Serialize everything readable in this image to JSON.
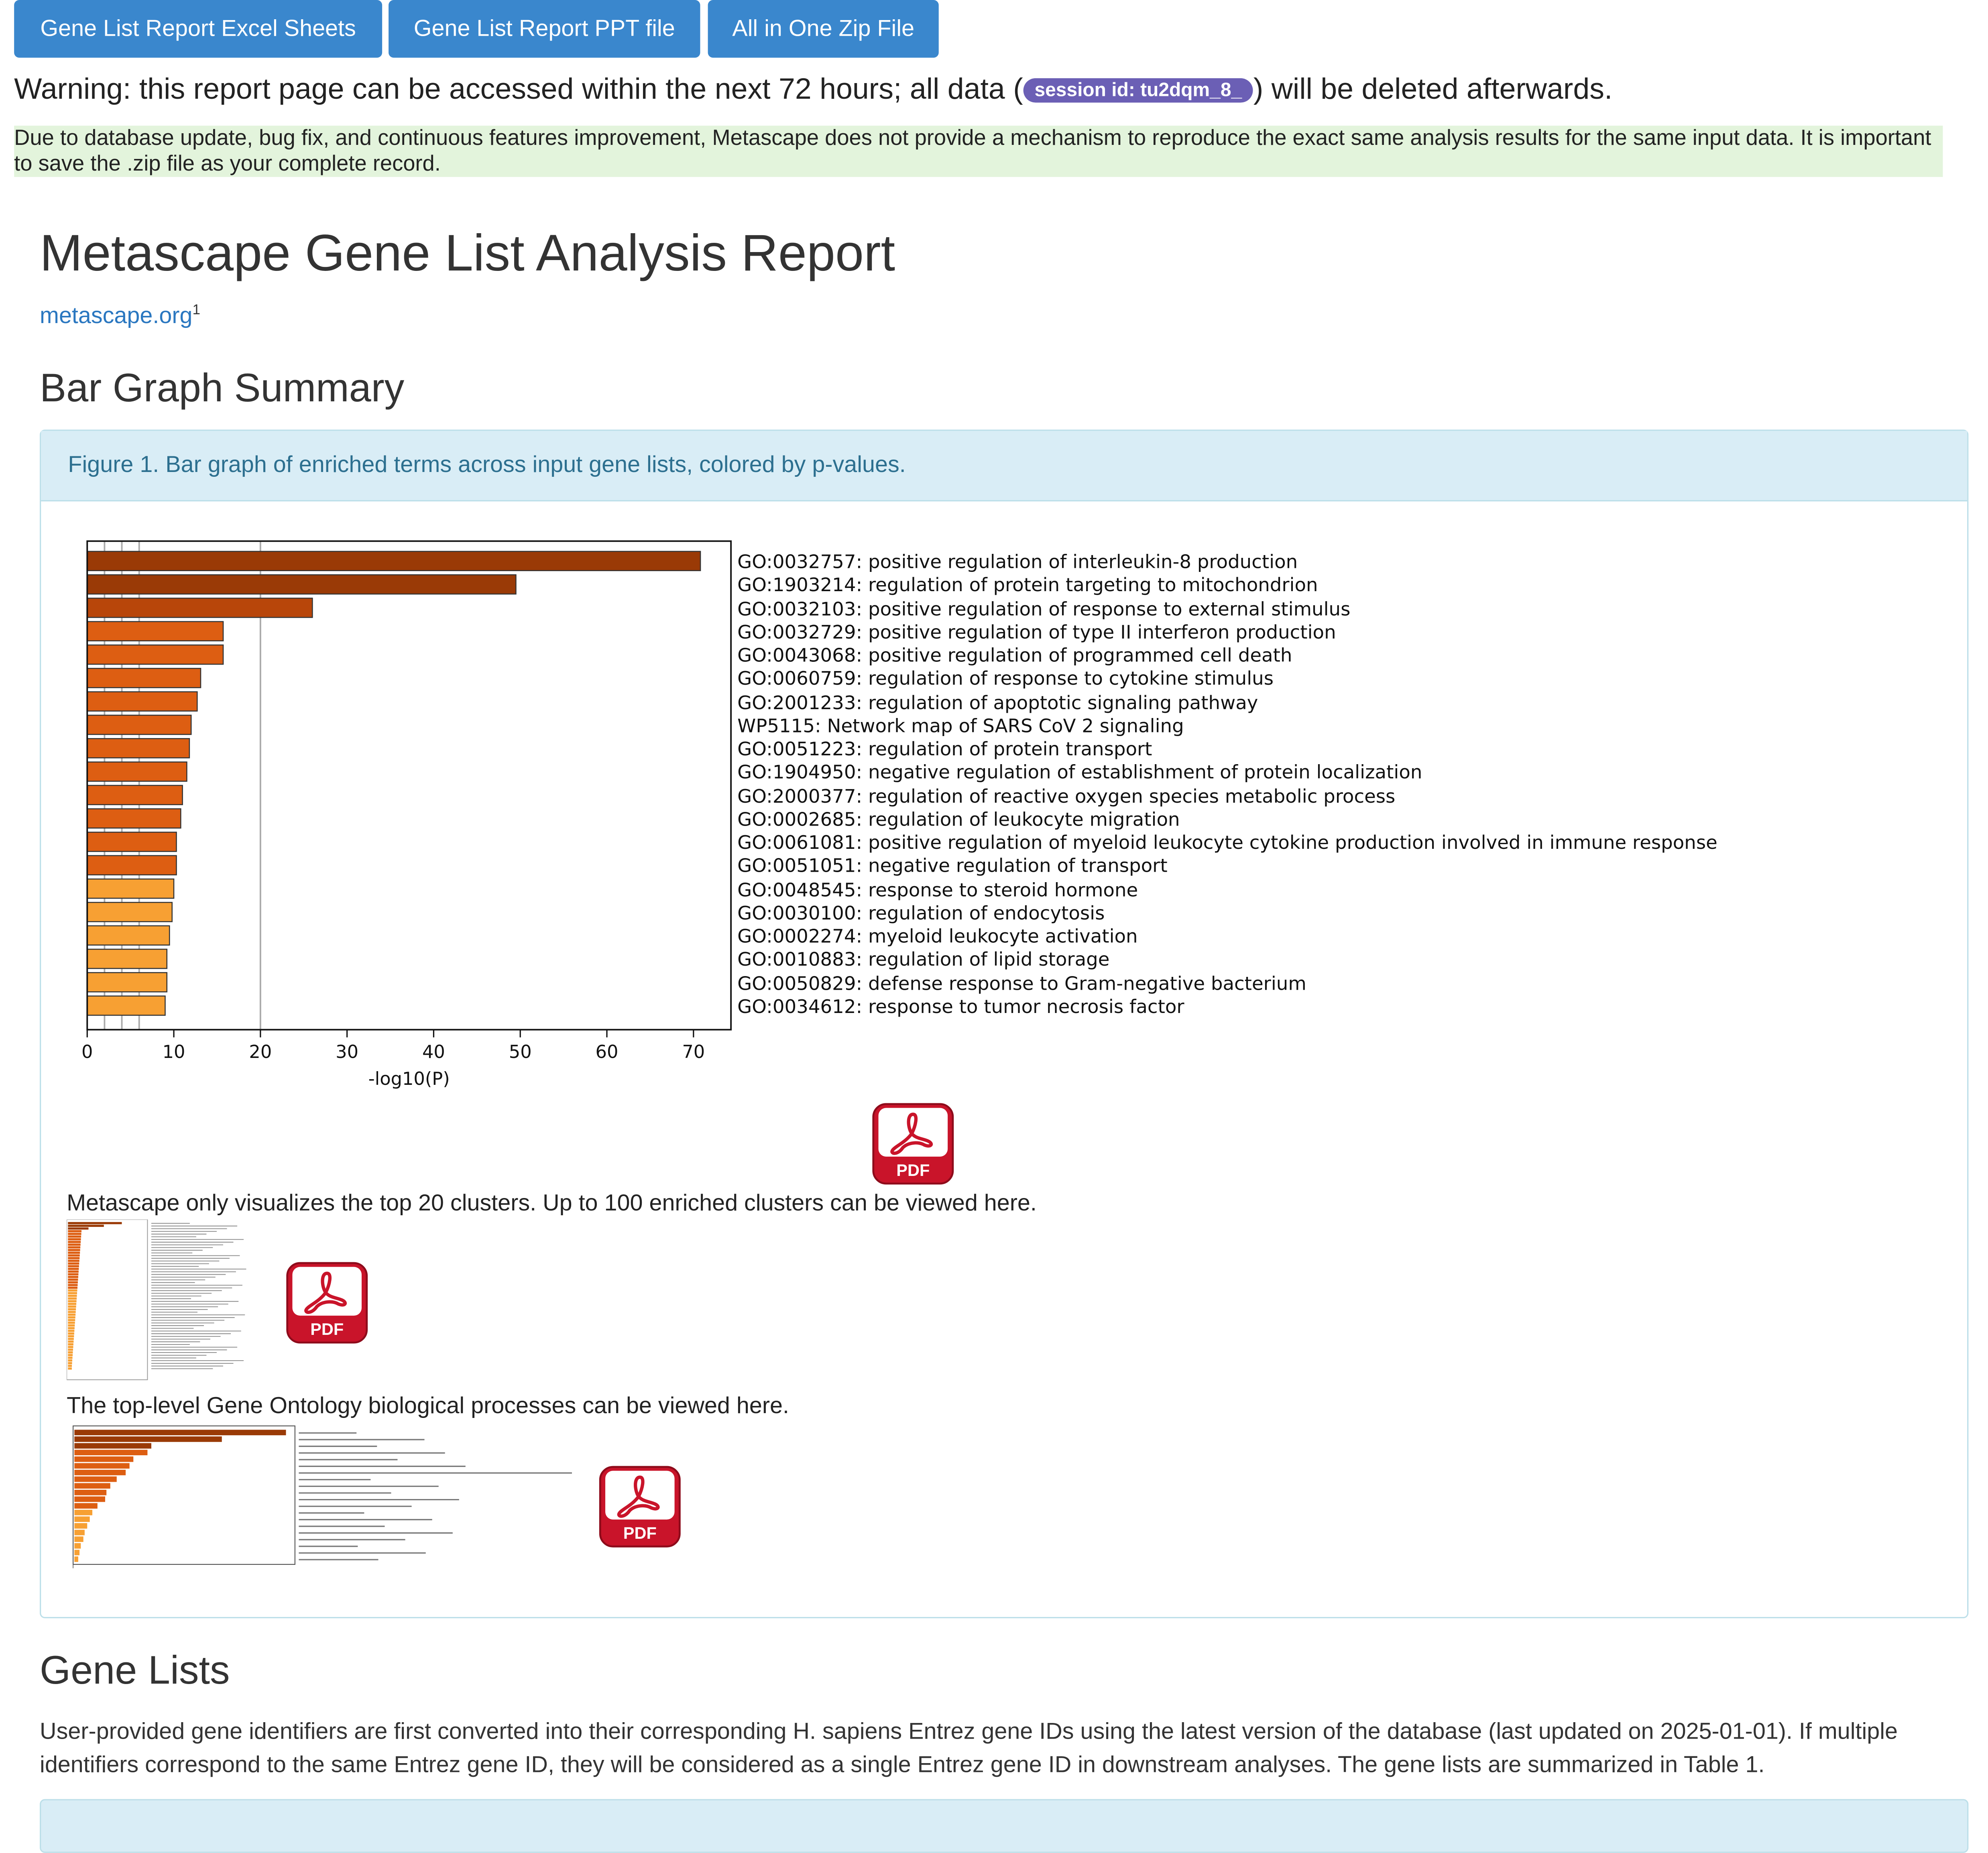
{
  "toolbar": {
    "excel_label": "Gene List Report Excel Sheets",
    "ppt_label": "Gene List Report PPT file",
    "zip_label": "All in One Zip File"
  },
  "warning": {
    "prefix": "Warning: this report page can be accessed within the next 72 hours; all data (",
    "session_badge": "session id: tu2dqm_8_",
    "suffix": ") will be deleted afterwards."
  },
  "notice": "Due to database update, bug fix, and continuous features improvement, Metascape does not provide a mechanism to reproduce the exact same analysis results for the same input data. It is important to save the .zip file as your complete record.",
  "report": {
    "title": "Metascape Gene List Analysis Report",
    "site_link": "metascape.org",
    "site_sup": "1"
  },
  "bar_section": {
    "heading": "Bar Graph Summary",
    "figure_caption": "Figure 1. Bar graph of enriched terms across input gene lists, colored by p-values.",
    "top20_note": "Metascape only visualizes the top 20 clusters. Up to 100 enriched clusters can be viewed here.",
    "toplevel_note": "The top-level Gene Ontology biological processes can be viewed here.",
    "pdf_label": "PDF"
  },
  "colors": {
    "button": "#3a87cd",
    "badge": "#6b5fb5",
    "notice_bg": "#e3f4dc",
    "panel_head": "#d9edf6",
    "bar_dark": "#9a3a06",
    "bar_mid": "#dd5e12",
    "bar_light": "#f7a033",
    "pdf_red": "#c9142a"
  },
  "chart_data": {
    "type": "bar",
    "orientation": "horizontal",
    "xlabel": "-log10(P)",
    "xlim": [
      0,
      74
    ],
    "xticks": [
      "0",
      "10",
      "20",
      "30",
      "40",
      "50",
      "60",
      "70"
    ],
    "categories": [
      "GO:0032757: positive regulation of interleukin-8 production",
      "GO:1903214: regulation of protein targeting to mitochondrion",
      "GO:0032103: positive regulation of response to external stimulus",
      "GO:0032729: positive regulation of type II interferon production",
      "GO:0043068: positive regulation of programmed cell death",
      "GO:0060759: regulation of response to cytokine stimulus",
      "GO:2001233: regulation of apoptotic signaling pathway",
      "WP5115: Network map of SARS CoV 2 signaling",
      "GO:0051223: regulation of protein transport",
      "GO:1904950: negative regulation of establishment of protein localization",
      "GO:2000377: regulation of reactive oxygen species metabolic process",
      "GO:0002685: regulation of leukocyte migration",
      "GO:0061081: positive regulation of myeloid leukocyte cytokine production involved in immune response",
      "GO:0051051: negative regulation of transport",
      "GO:0048545: response to steroid hormone",
      "GO:0030100: regulation of endocytosis",
      "GO:0002274: myeloid leukocyte activation",
      "GO:0010883: regulation of lipid storage",
      "GO:0050829: defense response to Gram-negative bacterium",
      "GO:0034612: response to tumor necrosis factor"
    ],
    "values": [
      70.8,
      49.5,
      26.0,
      15.7,
      15.7,
      13.1,
      12.7,
      12.0,
      11.8,
      11.5,
      11.0,
      10.8,
      10.3,
      10.3,
      10.0,
      9.8,
      9.5,
      9.2,
      9.2,
      9.0
    ],
    "vgrid": [
      2,
      4,
      6,
      20
    ]
  }
}
